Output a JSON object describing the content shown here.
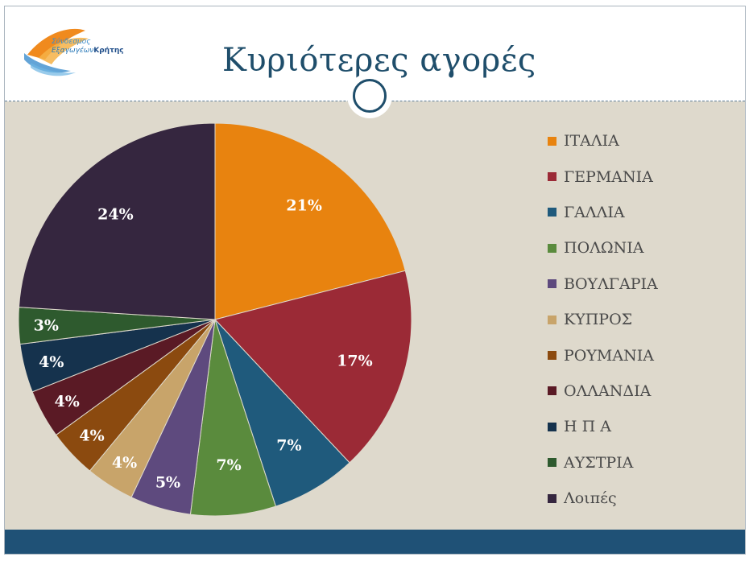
{
  "header": {
    "title": "Κυριότερες αγορές",
    "logo_line1": "Σύνδεσμος",
    "logo_line2a": "Εξαγωγέων",
    "logo_line2b": "Κρήτης"
  },
  "chart_data": {
    "type": "pie",
    "title": "Κυριότερες αγορές",
    "legend_position": "right",
    "categories": [
      "ΙΤΑΛΙΑ",
      "ΓΕΡΜΑΝΙΑ",
      "ΓΑΛΛΙΑ",
      "ΠΟΛΩΝΙΑ",
      "ΒΟΥΛΓΑΡΙΑ",
      "ΚΥΠΡΟΣ",
      "ΡΟΥΜΑΝΙΑ",
      "ΟΛΛΑΝΔΙΑ",
      "Η Π Α",
      "ΑΥΣΤΡΙΑ",
      "Λοιπές"
    ],
    "values": [
      21,
      17,
      7,
      7,
      5,
      4,
      4,
      4,
      4,
      3,
      24
    ],
    "labels": [
      "21%",
      "17%",
      "7%",
      "7%",
      "5%",
      "4%",
      "4%",
      "4%",
      "4%",
      "3%",
      "24%"
    ],
    "colors": [
      "#e8830f",
      "#9b2a36",
      "#1f5a7c",
      "#5a8b3d",
      "#5e4a7e",
      "#c8a46a",
      "#8b4a0f",
      "#5a1a25",
      "#15324d",
      "#2e5a2e",
      "#35263f"
    ]
  }
}
